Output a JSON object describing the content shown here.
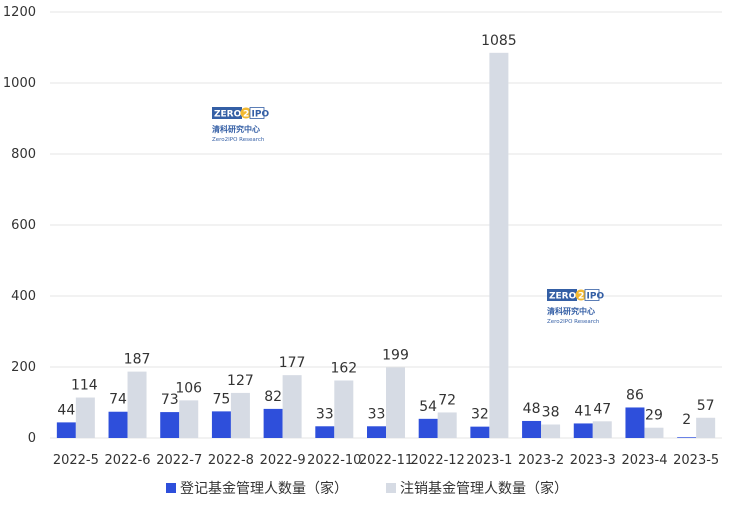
{
  "chart_data": {
    "type": "bar",
    "categories": [
      "2022-5",
      "2022-6",
      "2022-7",
      "2022-8",
      "2022-9",
      "2022-10",
      "2022-11",
      "2022-12",
      "2023-1",
      "2023-2",
      "2023-3",
      "2023-4",
      "2023-5"
    ],
    "series": [
      {
        "name": "登记基金管理人数量（家）",
        "color": "#2e4fdb",
        "values": [
          44,
          74,
          73,
          75,
          82,
          33,
          33,
          54,
          32,
          48,
          41,
          86,
          2
        ]
      },
      {
        "name": "注销基金管理人数量（家）",
        "color": "#d6dbe4",
        "values": [
          114,
          187,
          106,
          127,
          177,
          162,
          199,
          72,
          1085,
          38,
          47,
          29,
          57
        ]
      }
    ],
    "ylim": [
      0,
      1200
    ],
    "yticks": [
      "0",
      "200",
      "400",
      "600",
      "800",
      "1000",
      "1200"
    ],
    "grid": true,
    "legend_position": "bottom"
  },
  "watermark": {
    "logo_left": "ZERO",
    "logo_mid": "2",
    "logo_right": "IPO",
    "cn_name": "清科研究中心",
    "en_name": "Zero2IPO Research"
  }
}
